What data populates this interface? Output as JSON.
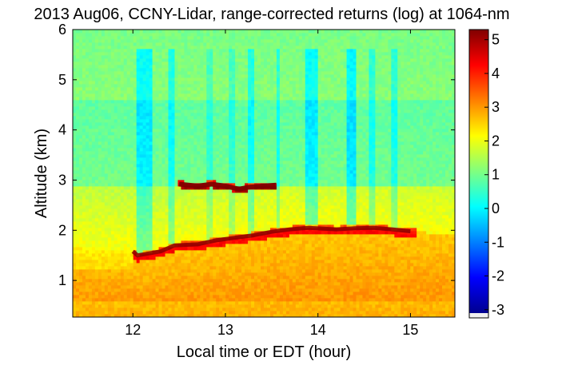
{
  "chart_data": {
    "type": "heatmap",
    "title": "2013 Aug06, CCNY-Lidar, range-corrected returns (log) at 1064-nm",
    "xlabel": "Local time or EDT (hour)",
    "ylabel": "Altitude (km)",
    "xlim": [
      11.35,
      15.48
    ],
    "ylim": [
      0.27,
      6.0
    ],
    "xticks": [
      12,
      13,
      14,
      15
    ],
    "yticks": [
      1,
      2,
      3,
      4,
      5,
      6
    ],
    "colorbar": {
      "ticks": [
        5,
        4,
        3,
        2,
        1,
        0,
        -1,
        -2,
        -3
      ],
      "range": [
        -3.1,
        5.3
      ],
      "colormap": "jet"
    },
    "features": {
      "boundary_layer_top_km": [
        [
          11.35,
          1.65
        ],
        [
          11.7,
          1.62
        ],
        [
          12.0,
          1.58
        ],
        [
          12.05,
          1.5
        ],
        [
          12.3,
          1.58
        ],
        [
          12.45,
          1.7
        ],
        [
          12.7,
          1.72
        ],
        [
          12.9,
          1.8
        ],
        [
          13.1,
          1.85
        ],
        [
          13.3,
          1.9
        ],
        [
          13.5,
          1.97
        ],
        [
          13.7,
          2.02
        ],
        [
          13.9,
          2.05
        ],
        [
          14.2,
          2.02
        ],
        [
          14.4,
          2.04
        ],
        [
          14.6,
          2.05
        ],
        [
          14.8,
          2.02
        ],
        [
          15.0,
          1.98
        ],
        [
          15.48,
          1.92
        ]
      ],
      "elevated_layer_km": [
        [
          12.5,
          2.92
        ],
        [
          12.7,
          2.88
        ],
        [
          12.85,
          2.92
        ],
        [
          13.0,
          2.88
        ],
        [
          13.15,
          2.82
        ],
        [
          13.25,
          2.86
        ],
        [
          13.4,
          2.88
        ],
        [
          13.55,
          2.9
        ]
      ]
    }
  }
}
